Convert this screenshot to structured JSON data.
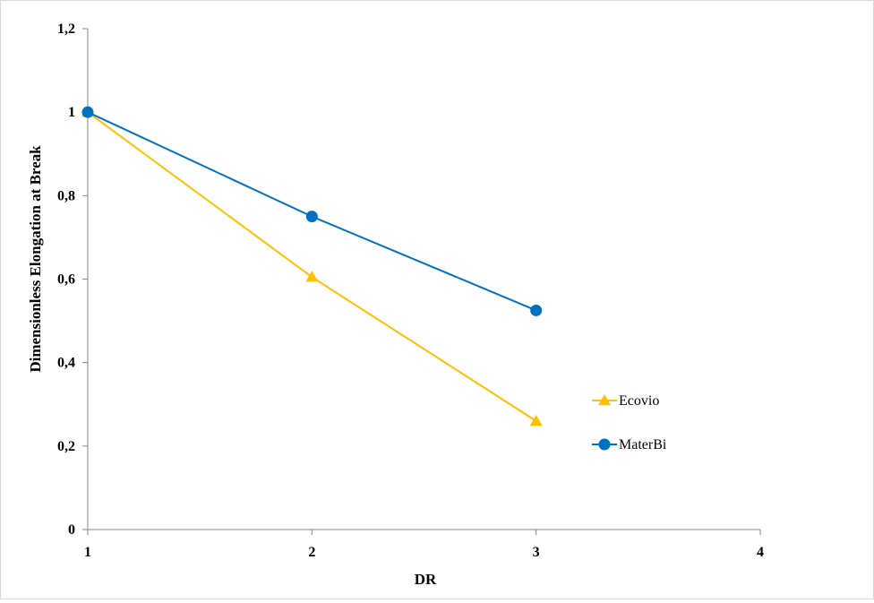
{
  "chart_data": {
    "type": "line",
    "title": "",
    "xlabel": "DR",
    "ylabel": "Dimensionless  Elongation at Break",
    "xlim": [
      1,
      4
    ],
    "ylim": [
      0,
      1.2
    ],
    "x_ticks": [
      "1",
      "2",
      "3",
      "4"
    ],
    "y_ticks": [
      "0",
      "0.2",
      "0.4",
      "0.6",
      "0.8",
      "1",
      "1.2"
    ],
    "x_tick_labels": [
      "1",
      "2",
      "3",
      "4"
    ],
    "y_tick_labels": [
      "0",
      "0,2",
      "0,4",
      "0,6",
      "0,8",
      "1",
      "1,2"
    ],
    "grid": false,
    "legend_position": "right",
    "series": [
      {
        "name": "Ecovio",
        "color": "#FFC000",
        "marker": "triangle",
        "x": [
          1,
          2,
          3
        ],
        "y": [
          1.0,
          0.605,
          0.26
        ]
      },
      {
        "name": "MaterBi",
        "color": "#0070C0",
        "marker": "circle",
        "x": [
          1,
          2,
          3
        ],
        "y": [
          1.0,
          0.75,
          0.525
        ]
      }
    ]
  }
}
